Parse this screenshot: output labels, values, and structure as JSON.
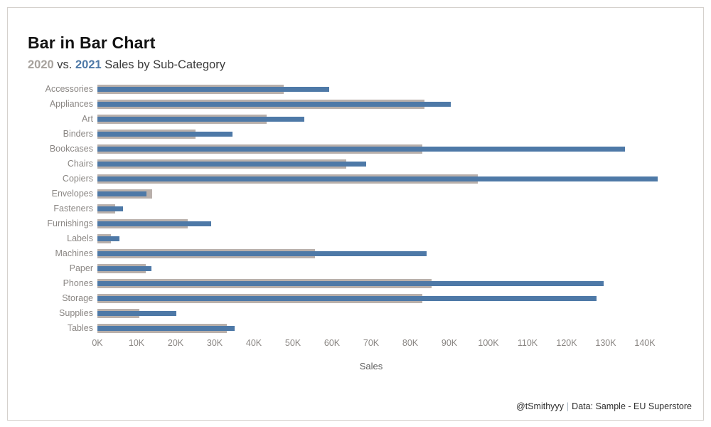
{
  "header": {
    "subtitle": {
      "year_a": "2020",
      "vs": " vs. ",
      "year_b": "2021",
      "rest": " Sales by Sub-Category"
    }
  },
  "chart_data": {
    "type": "bar",
    "variant": "bar-in-bar",
    "orientation": "horizontal",
    "title": "Bar in Bar Chart",
    "subtitle": "2020 vs. 2021 Sales by Sub-Category",
    "categories": [
      "Accessories",
      "Appliances",
      "Art",
      "Binders",
      "Bookcases",
      "Chairs",
      "Copiers",
      "Envelopes",
      "Fasteners",
      "Furnishings",
      "Labels",
      "Machines",
      "Paper",
      "Phones",
      "Storage",
      "Supplies",
      "Tables"
    ],
    "series": [
      {
        "name": "2020",
        "color": "#b9b0ab",
        "values_k": [
          47.7,
          83.7,
          43.2,
          25.0,
          83.0,
          63.7,
          97.3,
          13.9,
          4.5,
          23.1,
          3.5,
          55.7,
          12.3,
          85.4,
          83.0,
          10.8,
          33.0
        ]
      },
      {
        "name": "2021",
        "color": "#4e79a7",
        "values_k": [
          59.2,
          90.3,
          52.9,
          34.6,
          134.9,
          68.7,
          143.2,
          12.5,
          6.6,
          29.1,
          5.6,
          84.1,
          13.8,
          129.5,
          127.6,
          20.2,
          35.0
        ]
      }
    ],
    "xlabel": "Sales",
    "x_ticks": [
      "0K",
      "10K",
      "20K",
      "30K",
      "40K",
      "50K",
      "60K",
      "70K",
      "80K",
      "90K",
      "100K",
      "110K",
      "120K",
      "130K",
      "140K"
    ],
    "x_tick_step_k": 10,
    "xlim_k": [
      0,
      145
    ],
    "grid": false,
    "legend": "none (years color-encoded in subtitle)"
  },
  "footer": {
    "handle": "@tSmithyyy",
    "separator": "|",
    "source": "Data: Sample - EU Superstore"
  }
}
